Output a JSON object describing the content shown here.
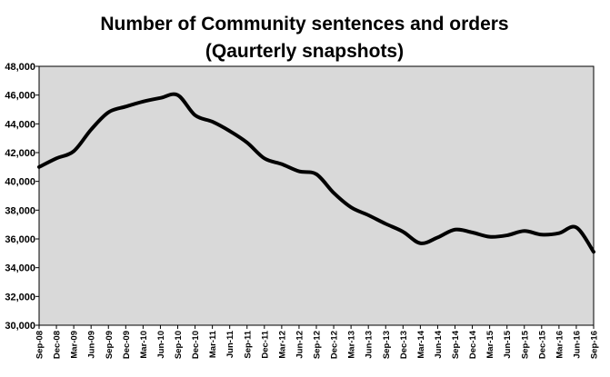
{
  "chart_data": {
    "type": "line",
    "title": "Number of Community sentences and orders",
    "subtitle": "(Qaurterly snapshots)",
    "xlabel": "",
    "ylabel": "",
    "ylim": [
      30000,
      48000
    ],
    "yticks": [
      "30,000",
      "32,000",
      "34,000",
      "36,000",
      "38,000",
      "40,000",
      "42,000",
      "44,000",
      "46,000",
      "48,000"
    ],
    "grid": false,
    "legend": "none",
    "categories": [
      "Sep-08",
      "Dec-08",
      "Mar-09",
      "Jun-09",
      "Sep-09",
      "Dec-09",
      "Mar-10",
      "Jun-10",
      "Sep-10",
      "Dec-10",
      "Mar-11",
      "Jun-11",
      "Sep-11",
      "Dec-11",
      "Mar-12",
      "Jun-12",
      "Sep-12",
      "Dec-12",
      "Mar-13",
      "Jun-13",
      "Sep-13",
      "Dec-13",
      "Mar-14",
      "Jun-14",
      "Sep-14",
      "Dec-14",
      "Mar-15",
      "Jun-15",
      "Sep-15",
      "Dec-15",
      "Mar-16",
      "Jun-16",
      "Sep-16"
    ],
    "series": [
      {
        "values": [
          41000,
          41600,
          42100,
          43600,
          44800,
          45200,
          45550,
          45800,
          46000,
          44600,
          44150,
          43500,
          42700,
          41600,
          41200,
          40700,
          40500,
          39200,
          38200,
          37650,
          37050,
          36500,
          35700,
          36100,
          36650,
          36450,
          36150,
          36250,
          36550,
          36300,
          36400,
          36800,
          35100
        ],
        "color": "#000000"
      }
    ],
    "plot_background": "#d9d9d9"
  }
}
